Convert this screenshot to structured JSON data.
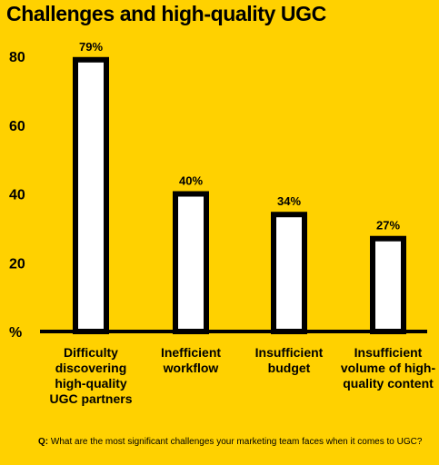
{
  "chart_data": {
    "type": "bar",
    "title": "Challenges and high-quality UGC",
    "categories": [
      "Difficulty discovering high-quality UGC partners",
      "Inefficient workflow",
      "Insufficient budget",
      "Insufficient volume of high-quality content"
    ],
    "values": [
      79,
      40,
      34,
      27
    ],
    "data_labels": [
      "79%",
      "40%",
      "34%",
      "27%"
    ],
    "y_ticks": [
      "80",
      "60",
      "40",
      "20",
      "%"
    ],
    "ylim": [
      0,
      80
    ],
    "grid": false,
    "colors": {
      "background": "#FFD100",
      "bar_fill": "#FFFFFF",
      "bar_stroke": "#000000"
    }
  },
  "footnote": {
    "prefix": "Q:",
    "text": " What are the most significant challenges your marketing team faces when it comes to UGC?"
  }
}
